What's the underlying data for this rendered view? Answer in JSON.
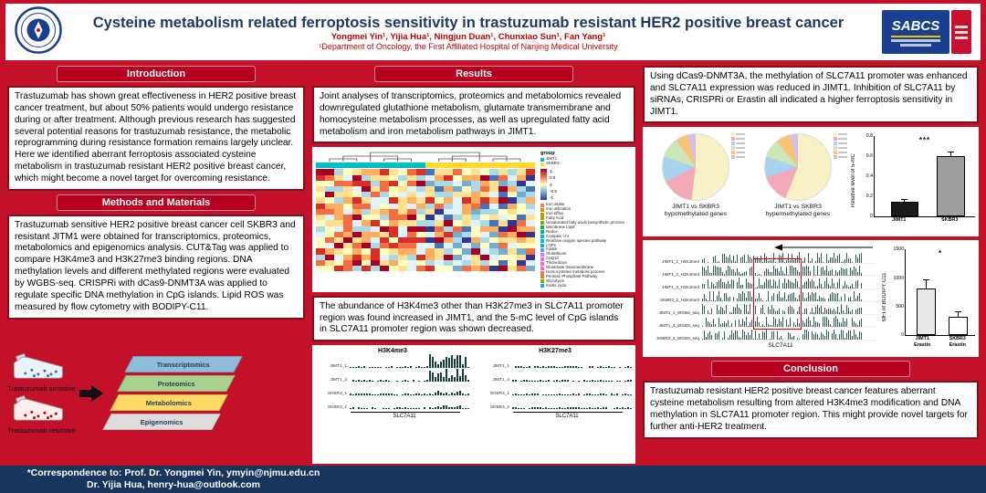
{
  "header": {
    "title": "Cysteine metabolism related ferroptosis sensitivity in trastuzumab resistant HER2 positive breast cancer",
    "authors": "Yongmei Yin¹, Yijia Hua¹, Ningjun Duan¹, Chunxiao Sun¹, Fan Yang¹",
    "affiliation": "¹Department of Oncology, the First Affiliated Hospital of Nanjing Medical University",
    "sabcs_text": "SABCS"
  },
  "sections": {
    "introduction": {
      "title": "Introduction",
      "body": "Trastuzumab has shown great effectiveness in HER2 positive breast cancer treatment, but about 50% patients would undergo resistance during or after treatment. Although previous research has suggested several potential reasons for trastuzumab resistance, the metabolic reprogramming during resistance formation remains largely unclear. Here we identified aberrant ferroptosis associated cysteine metabolism in trastuzumab resistant HER2 positive breast cancer, which might become a novel target for overcoming resistance."
    },
    "methods": {
      "title": "Methods and Materials",
      "body": "Trastuzumab sensitive HER2 positive breast cancer cell SKBR3 and resistant JITM1 were obtained for transcriptomics, proteomics, metabolomics and epigenomics analysis. CUT&Tag was applied to compare H3K4me3 and H3K27me3 binding regions. DNA methylation levels and different methylated regions were evaluated by WGBS-seq. CRISPRi with dCas9-DNMT3A was applied to regulate specific DNA methylation in CpG islands. Lipid ROS was measured by flow cytometry with BODIPY-C11."
    },
    "results": {
      "title": "Results",
      "body": "Joint analyses of transcriptomics, proteomics and metabolomics revealed downregulated glutathione metabolism, glutamate transmembrane and homocysteine metabolism processes, as well as upregulated fatty acid metabolism and iron metabolism pathways in JIMT1."
    },
    "results2": {
      "body": "The abundance of H3K4me3 other than H3K27me3 in SLC7A11 promoter region was found increased in JIMT1, and the 5-mC level of CpG islands in SLC7A11 promoter region was shown decreased."
    },
    "dcas9": {
      "body": "Using dCas9-DNMT3A, the methylation of SLC7A11 promoter was enhanced and SLC7A11 expression was reduced in JIMT1. Inhibition of SLC7A11 by siRNAs, CRISPRi or Erastin all indicated a higher ferroptosis sensitivity in JIMT1."
    },
    "conclusion": {
      "title": "Conclusion",
      "body": "Trastuzumab resistant HER2 positive breast cancer features aberrant cysteine metabolism resulting from altered H3K4me3 modification and DNA methylation in SLC7A11 promoter region. This might provide novel targets for further anti-HER2 treatment."
    }
  },
  "footer": {
    "line1": "*Correspondence to: Prof. Dr. Yongmei Yin, ymyin@njmu.edu.cn",
    "line2": "Dr. Yijia Hua, henry-hua@outlook.com"
  },
  "diagram": {
    "flask1_label": "Trastuzumab sensitive",
    "flask2_label": "Trastuzumab resistant",
    "sensitive_dot_color": "#2e75b6",
    "resistant_dot_color": "#c00000",
    "layers": [
      {
        "label": "Transcriptomics",
        "color": "#8fbcdb"
      },
      {
        "label": "Proteomics",
        "color": "#a9d18e"
      },
      {
        "label": "Metabolomics",
        "color": "#ffd966"
      },
      {
        "label": "Epigenomics",
        "color": "#dddddd"
      }
    ]
  },
  "heatmap": {
    "rows": 18,
    "cols": 24,
    "group_label": "group",
    "groups": [
      {
        "label": "JIMT1",
        "color": "#00bfc4"
      },
      {
        "label": "SKBR3",
        "color": "#ffd92f"
      }
    ],
    "scale_labels": [
      "1",
      "0.5",
      "0",
      "-0.5",
      "-1"
    ],
    "legend_items": [
      {
        "label": "Iron intake",
        "color": "#f8766d"
      },
      {
        "label": "Iron utilization",
        "color": "#e58700"
      },
      {
        "label": "Iron efflux",
        "color": "#c99800"
      },
      {
        "label": "Fatty Acid",
        "color": "#a3a500"
      },
      {
        "label": "Unsaturated fatty acids biosynthetic process",
        "color": "#6bb100"
      },
      {
        "label": "Membrane Lipid",
        "color": "#00ba38"
      },
      {
        "label": "Redox",
        "color": "#00bf7d"
      },
      {
        "label": "Complex I-IV",
        "color": "#00c0af"
      },
      {
        "label": "Reactive oxygen species pathway",
        "color": "#00bcd8"
      },
      {
        "label": "LOPs",
        "color": "#00b0f6"
      },
      {
        "label": "Folate",
        "color": "#619cff"
      },
      {
        "label": "Glutathione",
        "color": "#b983ff"
      },
      {
        "label": "CoQ10",
        "color": "#e76bf3"
      },
      {
        "label": "Thioredoxin",
        "color": "#fd61d1"
      },
      {
        "label": "Glutamate transmembrane",
        "color": "#ff67a4"
      },
      {
        "label": "Homocysteine metabolic process",
        "color": "#ff6c90"
      },
      {
        "label": "Pentose Phosphate Pathway",
        "color": "#d89000"
      },
      {
        "label": "Glycolysis",
        "color": "#99a800"
      },
      {
        "label": "Krebs cycle",
        "color": "#00b8e5"
      }
    ]
  },
  "cuttag": {
    "panels": [
      {
        "title": "H3K4me3",
        "rows": [
          "JIMT1_1",
          "JIMT1_2",
          "SKBR3_1",
          "SKBR3_2"
        ],
        "gene": "SLC7A11"
      },
      {
        "title": "H3K27me3",
        "rows": [
          "JIMT1_1",
          "JIMT1_2",
          "SKBR3_1",
          "SKBR3_2"
        ],
        "gene": "SLC7A11"
      }
    ]
  },
  "wgbs": {
    "rows": [
      "JIMT1_1_H3K4me3",
      "JIMT1_2_H3K4me3",
      "JIMT1_3_H3K4me3",
      "SKBR3_2_H3K4me3",
      "JIMT1_1_WGBS_seq",
      "JIMT1_3_WGBS_seq",
      "SKBR3_2_WGBS_seq"
    ],
    "gene": "SLC7A11"
  },
  "chart_data": [
    {
      "id": "hypo_pie",
      "type": "pie",
      "caption": "JIMT1 vs SKBR3\nhypomethylated genes",
      "slices": [
        {
          "color": "#f7f1c5",
          "value": 52
        },
        {
          "color": "#f4a9b8",
          "value": 16
        },
        {
          "color": "#a8d3f0",
          "value": 12
        },
        {
          "color": "#cde6b5",
          "value": 10
        },
        {
          "color": "#f8c471",
          "value": 6
        },
        {
          "color": "#d7bde2",
          "value": 4
        }
      ]
    },
    {
      "id": "hyper_pie",
      "type": "pie",
      "caption": "JIMT1 vs SKBR3\nhypermethylated genes",
      "slices": [
        {
          "color": "#f7f1c5",
          "value": 56
        },
        {
          "color": "#f4a9b8",
          "value": 14
        },
        {
          "color": "#a8d3f0",
          "value": 10
        },
        {
          "color": "#cde6b5",
          "value": 9
        },
        {
          "color": "#f8c471",
          "value": 7
        },
        {
          "color": "#d7bde2",
          "value": 4
        }
      ]
    },
    {
      "id": "five_mc_bar",
      "type": "bar",
      "ylabel": "Relative level of 5-mC",
      "categories": [
        "JIMT1",
        "SKBR3"
      ],
      "values": [
        0.15,
        0.6
      ],
      "errors": [
        0.03,
        0.05
      ],
      "colors": [
        "#1a1a1a",
        "#9e9e9e"
      ],
      "ylim": [
        0,
        0.8
      ],
      "yticks": [
        0,
        0.2,
        0.4,
        0.6,
        0.8
      ],
      "significance": "***"
    },
    {
      "id": "bodipy_bar",
      "type": "bar",
      "ylabel": "MFI of BODIPY C11",
      "categories": [
        "JIMT1\nErastin",
        "SKBR3\nErastin"
      ],
      "values": [
        820,
        330
      ],
      "errors": [
        160,
        90
      ],
      "colors": [
        "#e8e8e8",
        "#ffffff"
      ],
      "ylim": [
        0,
        1500
      ],
      "yticks": [
        0,
        500,
        1000,
        1500
      ],
      "significance": "*"
    }
  ]
}
